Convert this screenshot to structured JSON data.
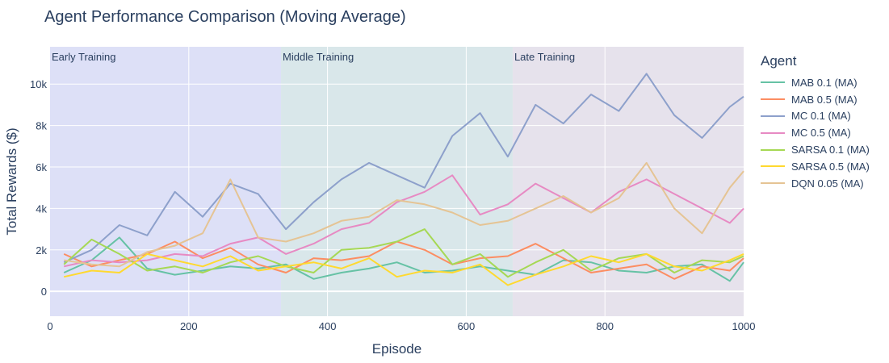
{
  "chart_data": {
    "type": "line",
    "title": "Agent Performance Comparison (Moving Average)",
    "xlabel": "Episode",
    "ylabel": "Total Rewards ($)",
    "xlim": [
      0,
      1000
    ],
    "ylim": [
      -1200,
      11800
    ],
    "x_ticks": [
      0,
      200,
      400,
      600,
      800,
      1000
    ],
    "x_tick_labels": [
      "0",
      "200",
      "400",
      "600",
      "800",
      "1000"
    ],
    "y_ticks": [
      0,
      2000,
      4000,
      6000,
      8000,
      10000
    ],
    "y_tick_labels": [
      "0",
      "2k",
      "4k",
      "6k",
      "8k",
      "10k"
    ],
    "grid": true,
    "legend_title": "Agent",
    "legend_position": "right",
    "regions": [
      {
        "label": "Early Training",
        "x0": 0,
        "x1": 333,
        "color": "#dde0f7"
      },
      {
        "label": "Middle Training",
        "x0": 333,
        "x1": 667,
        "color": "#d9e7ea"
      },
      {
        "label": "Late Training",
        "x0": 667,
        "x1": 1000,
        "color": "#e6e2ec"
      }
    ],
    "x": [
      20,
      60,
      100,
      140,
      180,
      220,
      260,
      300,
      340,
      380,
      420,
      460,
      500,
      540,
      580,
      620,
      660,
      700,
      740,
      780,
      820,
      860,
      900,
      940,
      980,
      1000
    ],
    "series": [
      {
        "name": "MAB 0.1 (MA)",
        "color": "#66c2a5",
        "values": [
          900,
          1500,
          2600,
          1100,
          800,
          1000,
          1200,
          1100,
          1300,
          600,
          900,
          1100,
          1400,
          900,
          1000,
          1200,
          1000,
          800,
          1500,
          1400,
          1000,
          900,
          1200,
          1300,
          500,
          1400
        ]
      },
      {
        "name": "MAB 0.5 (MA)",
        "color": "#fc8d62",
        "values": [
          1800,
          1200,
          1500,
          1800,
          2400,
          1600,
          2100,
          1300,
          900,
          1600,
          1500,
          1700,
          2400,
          2000,
          1300,
          1600,
          1700,
          2300,
          1600,
          900,
          1100,
          1300,
          600,
          1200,
          1000,
          1600
        ]
      },
      {
        "name": "MC 0.1 (MA)",
        "color": "#8da0cb",
        "values": [
          1400,
          2000,
          3200,
          2700,
          4800,
          3600,
          5200,
          4700,
          3000,
          4300,
          5400,
          6200,
          5600,
          5000,
          7500,
          8600,
          6500,
          9000,
          8100,
          9500,
          8700,
          10500,
          8500,
          7400,
          8900,
          9400
        ]
      },
      {
        "name": "MC 0.5 (MA)",
        "color": "#e78ac3",
        "values": [
          1200,
          1500,
          1400,
          1500,
          1800,
          1700,
          2300,
          2600,
          1800,
          2300,
          3000,
          3300,
          4300,
          4800,
          5600,
          3700,
          4200,
          5200,
          4500,
          3800,
          4800,
          5400,
          4700,
          4000,
          3300,
          4000
        ]
      },
      {
        "name": "SARSA 0.1 (MA)",
        "color": "#a6d854",
        "values": [
          1300,
          2500,
          1800,
          1000,
          1200,
          900,
          1400,
          1700,
          1200,
          900,
          2000,
          2100,
          2400,
          3000,
          1300,
          1800,
          700,
          1400,
          2000,
          1000,
          1600,
          1800,
          900,
          1500,
          1400,
          1700
        ]
      },
      {
        "name": "SARSA 0.5 (MA)",
        "color": "#ffd92f",
        "values": [
          700,
          1000,
          900,
          1800,
          1500,
          1200,
          1700,
          1000,
          1200,
          1400,
          1100,
          1600,
          700,
          1000,
          900,
          1300,
          300,
          800,
          1200,
          1700,
          1400,
          1800,
          1200,
          1000,
          1500,
          1800
        ]
      },
      {
        "name": "DQN 0.05 (MA)",
        "color": "#e5c494",
        "values": [
          1500,
          1300,
          1200,
          1900,
          2200,
          2800,
          5400,
          2600,
          2400,
          2800,
          3400,
          3600,
          4400,
          4200,
          3800,
          3200,
          3400,
          4000,
          4600,
          3800,
          4500,
          6200,
          4000,
          2800,
          5000,
          5800
        ]
      }
    ]
  }
}
